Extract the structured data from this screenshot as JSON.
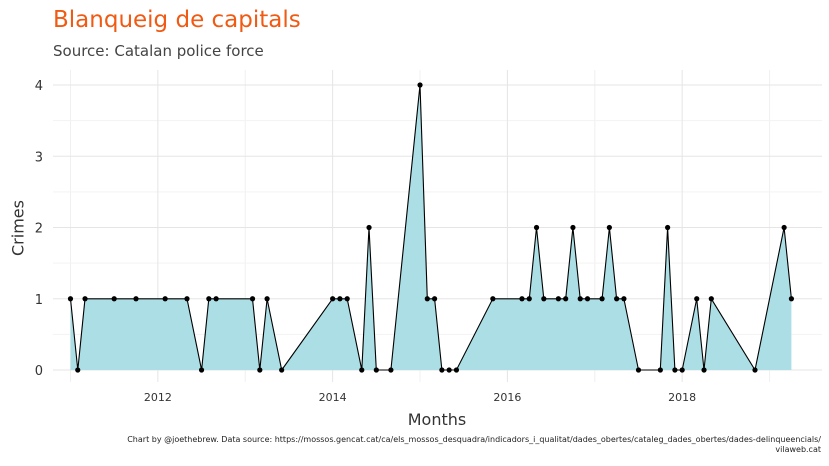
{
  "title": "Blanqueig de capitals",
  "subtitle": "Source: Catalan police force",
  "caption_line1": "Chart by @joethebrew. Data source: https://mossos.gencat.cat/ca/els_mossos_desquadra/indicadors_i_qualitat/dades_obertes/cataleg_dades_obertes/dades-delinqueencials/",
  "caption_line2": "vilaweb.cat",
  "colors": {
    "title": "#f05a12",
    "area": "#acdfe5",
    "line": "#000000",
    "grid": "#e5e5e5"
  },
  "chart_data": {
    "type": "area",
    "xlabel": "Months",
    "ylabel": "Crimes",
    "xlim": [
      2010.8,
      2019.6
    ],
    "ylim": [
      0,
      4.2
    ],
    "x_ticks": [
      2012,
      2014,
      2016,
      2018
    ],
    "y_ticks": [
      0,
      1,
      2,
      3,
      4
    ],
    "grid": true,
    "points": [
      {
        "x": "2011-01",
        "y": 1
      },
      {
        "x": "2011-02",
        "y": 0
      },
      {
        "x": "2011-03",
        "y": 1
      },
      {
        "x": "2011-07",
        "y": 1
      },
      {
        "x": "2011-10",
        "y": 1
      },
      {
        "x": "2012-02",
        "y": 1
      },
      {
        "x": "2012-05",
        "y": 1
      },
      {
        "x": "2012-07",
        "y": 0
      },
      {
        "x": "2012-08",
        "y": 1
      },
      {
        "x": "2012-09",
        "y": 1
      },
      {
        "x": "2013-02",
        "y": 1
      },
      {
        "x": "2013-03",
        "y": 0
      },
      {
        "x": "2013-04",
        "y": 1
      },
      {
        "x": "2013-06",
        "y": 0
      },
      {
        "x": "2014-01",
        "y": 1
      },
      {
        "x": "2014-02",
        "y": 1
      },
      {
        "x": "2014-03",
        "y": 1
      },
      {
        "x": "2014-05",
        "y": 0
      },
      {
        "x": "2014-06",
        "y": 2
      },
      {
        "x": "2014-07",
        "y": 0
      },
      {
        "x": "2014-09",
        "y": 0
      },
      {
        "x": "2015-01",
        "y": 4
      },
      {
        "x": "2015-02",
        "y": 1
      },
      {
        "x": "2015-03",
        "y": 1
      },
      {
        "x": "2015-04",
        "y": 0
      },
      {
        "x": "2015-05",
        "y": 0
      },
      {
        "x": "2015-06",
        "y": 0
      },
      {
        "x": "2015-11",
        "y": 1
      },
      {
        "x": "2016-03",
        "y": 1
      },
      {
        "x": "2016-04",
        "y": 1
      },
      {
        "x": "2016-05",
        "y": 2
      },
      {
        "x": "2016-06",
        "y": 1
      },
      {
        "x": "2016-08",
        "y": 1
      },
      {
        "x": "2016-09",
        "y": 1
      },
      {
        "x": "2016-10",
        "y": 2
      },
      {
        "x": "2016-11",
        "y": 1
      },
      {
        "x": "2016-12",
        "y": 1
      },
      {
        "x": "2017-02",
        "y": 1
      },
      {
        "x": "2017-03",
        "y": 2
      },
      {
        "x": "2017-04",
        "y": 1
      },
      {
        "x": "2017-05",
        "y": 1
      },
      {
        "x": "2017-07",
        "y": 0
      },
      {
        "x": "2017-10",
        "y": 0
      },
      {
        "x": "2017-11",
        "y": 2
      },
      {
        "x": "2017-12",
        "y": 0
      },
      {
        "x": "2018-01",
        "y": 0
      },
      {
        "x": "2018-03",
        "y": 1
      },
      {
        "x": "2018-04",
        "y": 0
      },
      {
        "x": "2018-05",
        "y": 1
      },
      {
        "x": "2018-11",
        "y": 0
      },
      {
        "x": "2019-03",
        "y": 2
      },
      {
        "x": "2019-04",
        "y": 1
      }
    ]
  }
}
